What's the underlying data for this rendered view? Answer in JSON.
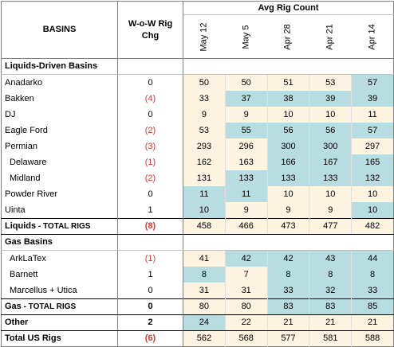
{
  "header": {
    "basins": "BASINS",
    "wow": "W-o-W Rig Chg",
    "avg": "Avg Rig Count",
    "dates": [
      "May 12",
      "May 5",
      "Apr 28",
      "Apr 21",
      "Apr 14"
    ]
  },
  "colors": {
    "teal": "#b7dde0",
    "cream": "#fdf3e1",
    "negative": "#e3342f"
  },
  "sections": {
    "liquids": "Liquids-Driven Basins",
    "gas": "Gas Basins"
  },
  "rows": {
    "anadarko": {
      "name": "Anadarko",
      "wow": "0",
      "v": [
        "50",
        "50",
        "51",
        "53",
        "57"
      ]
    },
    "bakken": {
      "name": "Bakken",
      "wow": "(4)",
      "v": [
        "33",
        "37",
        "38",
        "39",
        "39"
      ]
    },
    "dj": {
      "name": "DJ",
      "wow": "0",
      "v": [
        "9",
        "9",
        "10",
        "10",
        "11"
      ]
    },
    "eagleford": {
      "name": "Eagle Ford",
      "wow": "(2)",
      "v": [
        "53",
        "55",
        "56",
        "56",
        "57"
      ]
    },
    "permian": {
      "name": "Permian",
      "wow": "(3)",
      "v": [
        "293",
        "296",
        "300",
        "300",
        "297"
      ]
    },
    "delaware": {
      "name": "Delaware",
      "wow": "(1)",
      "v": [
        "162",
        "163",
        "166",
        "167",
        "165"
      ]
    },
    "midland": {
      "name": "Midland",
      "wow": "(2)",
      "v": [
        "131",
        "133",
        "133",
        "133",
        "132"
      ]
    },
    "powderriver": {
      "name": "Powder River",
      "wow": "0",
      "v": [
        "11",
        "11",
        "10",
        "10",
        "10"
      ]
    },
    "uinta": {
      "name": "Uinta",
      "wow": "1",
      "v": [
        "10",
        "9",
        "9",
        "9",
        "10"
      ]
    },
    "liquids_total": {
      "name": "Liquids",
      "suffix": " - TOTAL RIGS",
      "wow": "(8)",
      "v": [
        "458",
        "466",
        "473",
        "477",
        "482"
      ]
    },
    "arklatex": {
      "name": "ArkLaTex",
      "wow": "(1)",
      "v": [
        "41",
        "42",
        "42",
        "43",
        "44"
      ]
    },
    "barnett": {
      "name": "Barnett",
      "wow": "1",
      "v": [
        "8",
        "7",
        "8",
        "8",
        "8"
      ]
    },
    "marcellus": {
      "name": "Marcellus + Utica",
      "wow": "0",
      "v": [
        "31",
        "31",
        "33",
        "32",
        "33"
      ]
    },
    "gas_total": {
      "name": "Gas",
      "suffix": " - TOTAL RIGS",
      "wow": "0",
      "v": [
        "80",
        "80",
        "83",
        "83",
        "85"
      ]
    },
    "other": {
      "name": "Other",
      "wow": "2",
      "v": [
        "24",
        "22",
        "21",
        "21",
        "21"
      ]
    },
    "us_total": {
      "name": "Total US Rigs",
      "wow": "(6)",
      "v": [
        "562",
        "568",
        "577",
        "581",
        "588"
      ]
    }
  }
}
